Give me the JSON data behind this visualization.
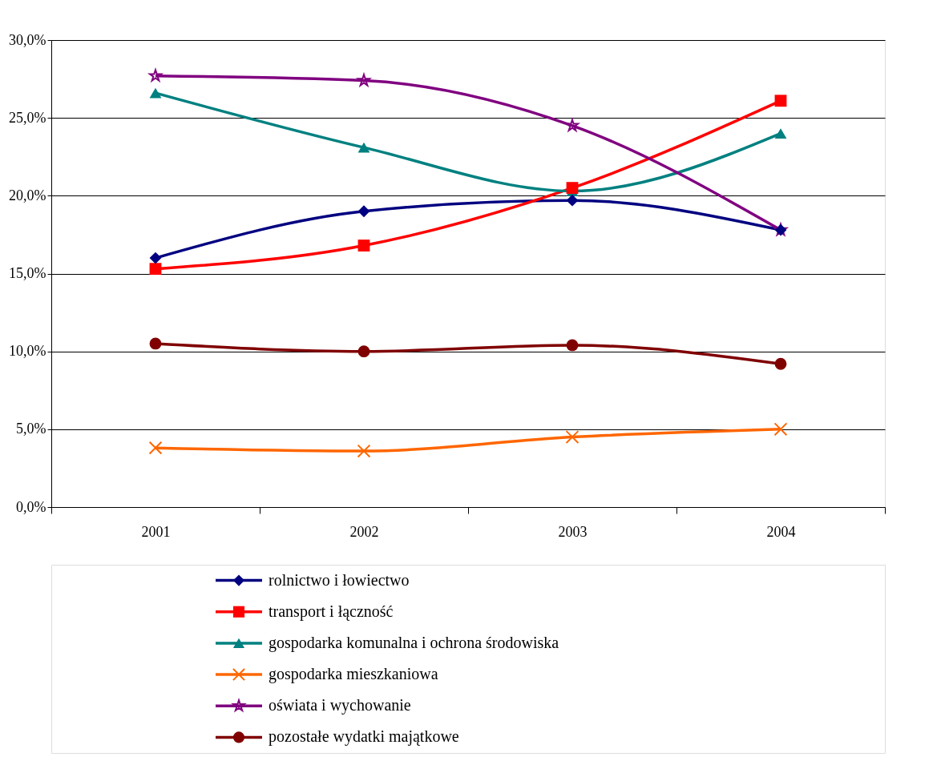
{
  "chart_data": {
    "type": "line",
    "categories": [
      "2001",
      "2002",
      "2003",
      "2004"
    ],
    "series": [
      {
        "name": "rolnictwo i łowiectwo",
        "color": "#000080",
        "marker": "diamond",
        "values": [
          16.0,
          19.0,
          19.7,
          17.8
        ]
      },
      {
        "name": "transport i łączność",
        "color": "#ff0000",
        "marker": "square",
        "values": [
          15.3,
          16.8,
          20.5,
          26.1
        ]
      },
      {
        "name": "gospodarka komunalna i ochrona środowiska",
        "color": "#008080",
        "marker": "triangle",
        "values": [
          26.6,
          23.1,
          20.3,
          24.0
        ]
      },
      {
        "name": "gospodarka mieszkaniowa",
        "color": "#ff6600",
        "marker": "cross",
        "values": [
          3.8,
          3.6,
          4.5,
          5.0
        ]
      },
      {
        "name": "oświata i wychowanie",
        "color": "#800080",
        "marker": "star",
        "values": [
          27.7,
          27.4,
          24.5,
          17.8
        ]
      },
      {
        "name": "pozostałe wydatki majątkowe",
        "color": "#800000",
        "marker": "circle",
        "values": [
          10.5,
          10.0,
          10.4,
          9.2
        ]
      }
    ],
    "ylim": [
      0,
      30
    ],
    "yticks": [
      {
        "value": 0,
        "label": "0,0%"
      },
      {
        "value": 5,
        "label": "5,0%"
      },
      {
        "value": 10,
        "label": "10,0%"
      },
      {
        "value": 15,
        "label": "15,0%"
      },
      {
        "value": 20,
        "label": "20,0%"
      },
      {
        "value": 25,
        "label": "25,0%"
      },
      {
        "value": 30,
        "label": "30,0%"
      }
    ],
    "grid": "y",
    "legend": "bottom",
    "line_style": "solid"
  }
}
